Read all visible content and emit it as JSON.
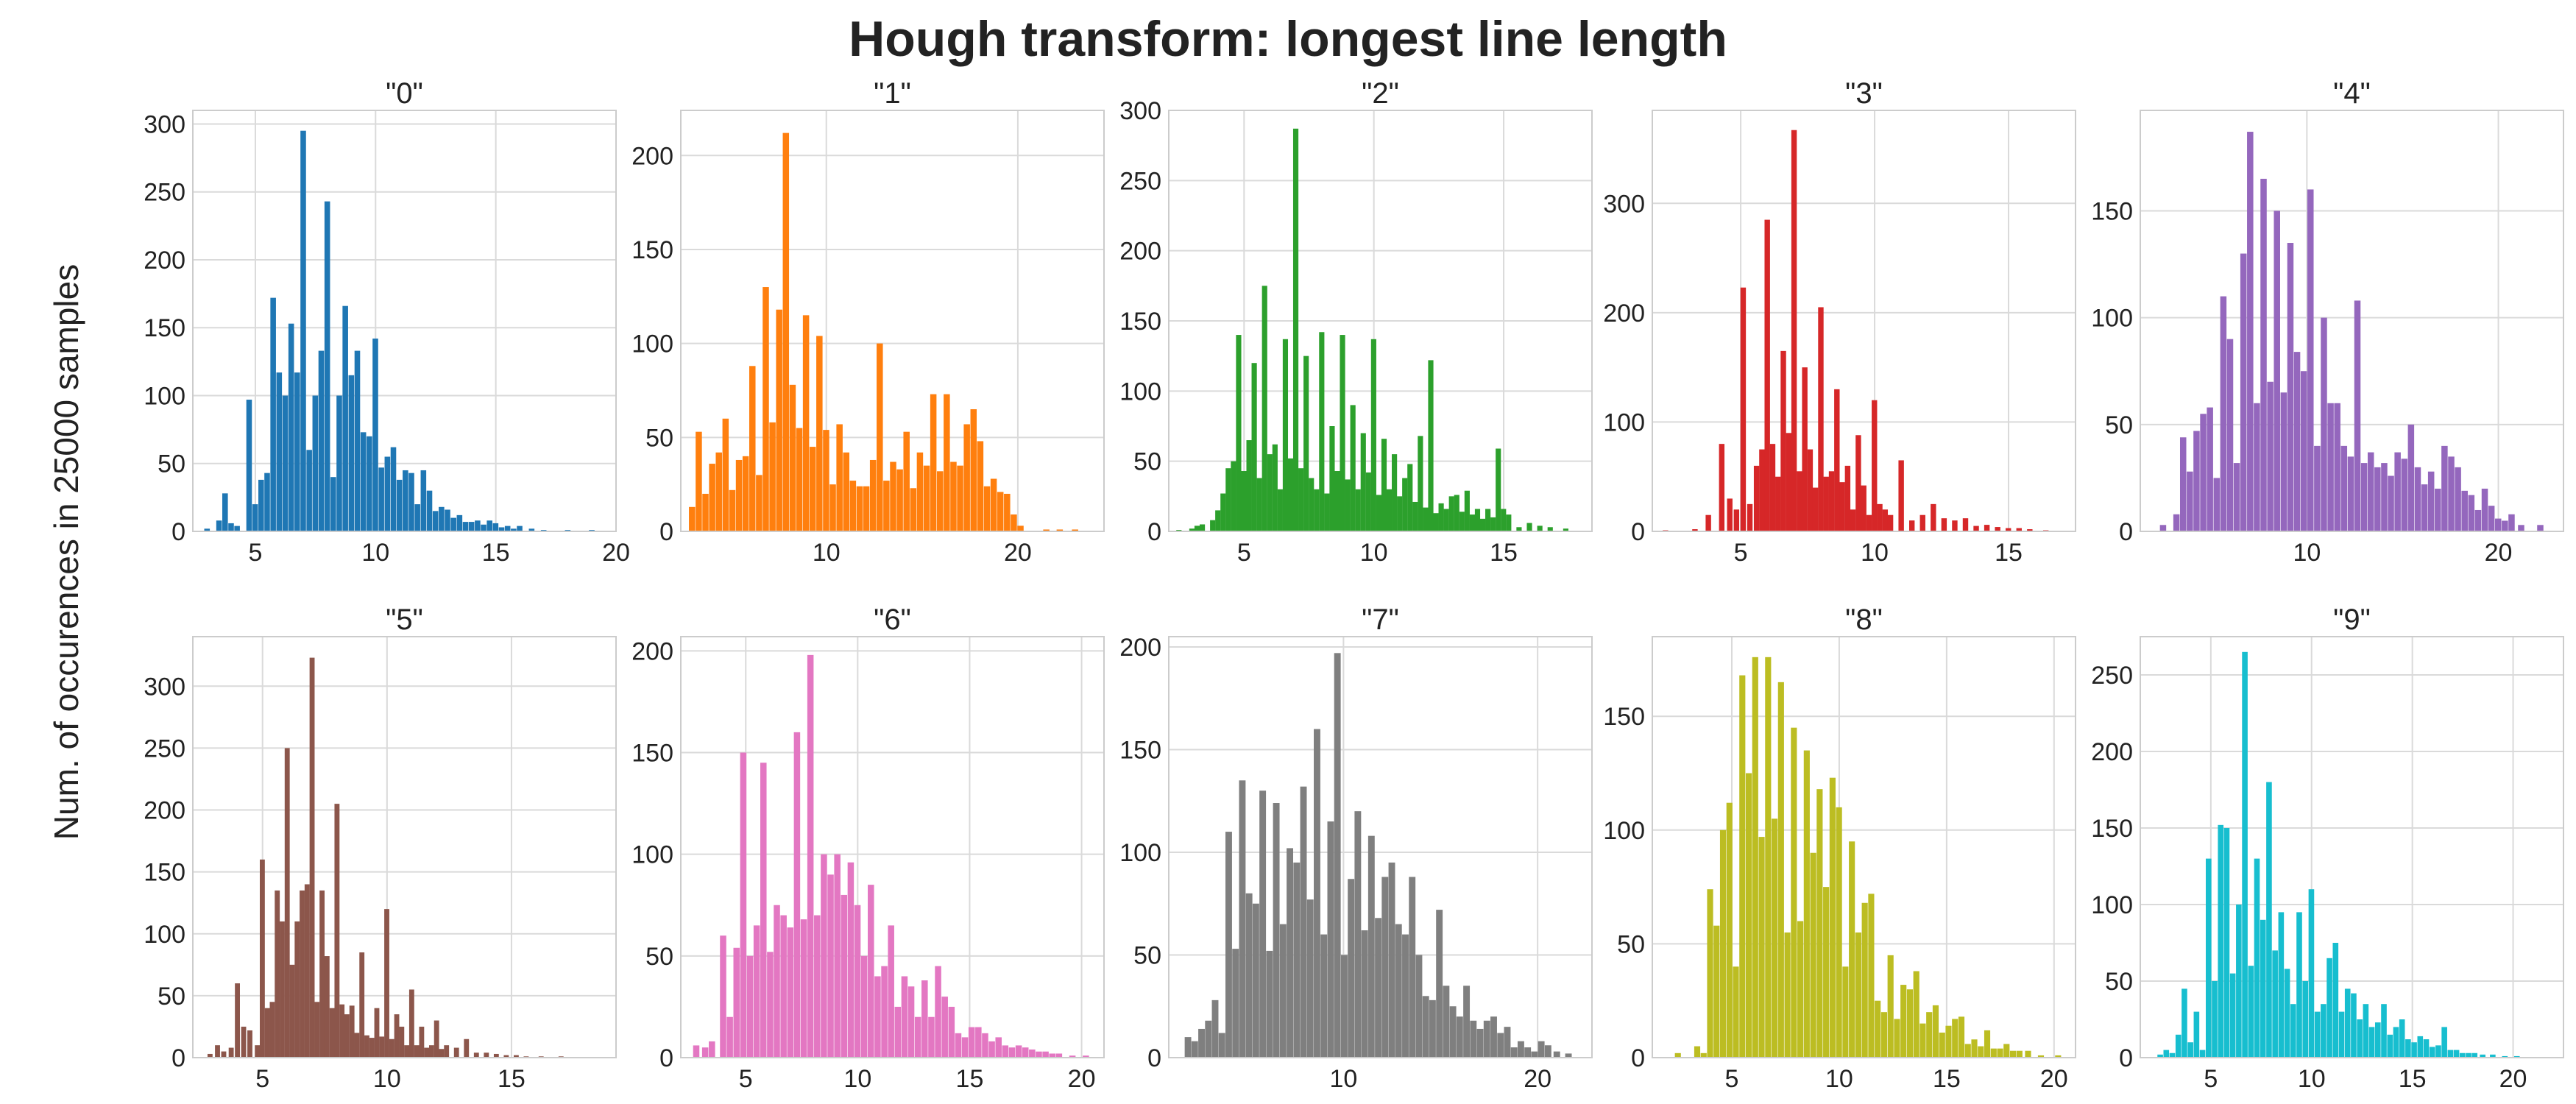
{
  "figure": {
    "title": "Hough transform: longest line length",
    "ylabel": "Num. of occurences in 25000 samples"
  },
  "chart_data": [
    {
      "type": "bar",
      "title": "\"0\"",
      "color": "#1f77b4",
      "xlim": [
        2.4,
        20
      ],
      "ylim": [
        0,
        310
      ],
      "xticks": [
        5,
        10,
        15,
        20
      ],
      "yticks": [
        0,
        50,
        100,
        150,
        200,
        250,
        300
      ],
      "grid": true,
      "bin_width": 0.25,
      "x": [
        3.0,
        3.5,
        3.75,
        4.0,
        4.25,
        4.75,
        5.0,
        5.25,
        5.5,
        5.75,
        6.0,
        6.25,
        6.5,
        6.75,
        7.0,
        7.25,
        7.5,
        7.75,
        8.0,
        8.25,
        8.5,
        8.75,
        9.0,
        9.25,
        9.5,
        9.75,
        10.0,
        10.25,
        10.5,
        10.75,
        11.0,
        11.25,
        11.5,
        11.75,
        12.0,
        12.25,
        12.5,
        12.75,
        13.0,
        13.25,
        13.5,
        13.75,
        14.0,
        14.25,
        14.5,
        14.75,
        15.0,
        15.25,
        15.5,
        15.75,
        16.0,
        16.5,
        17.0,
        18.0,
        19.0
      ],
      "values": [
        2,
        8,
        28,
        6,
        4,
        97,
        20,
        38,
        43,
        172,
        117,
        100,
        153,
        117,
        295,
        60,
        100,
        133,
        243,
        40,
        100,
        166,
        115,
        133,
        73,
        70,
        142,
        47,
        55,
        62,
        38,
        45,
        43,
        20,
        45,
        30,
        15,
        18,
        16,
        10,
        12,
        7,
        7,
        8,
        5,
        8,
        6,
        3,
        4,
        2,
        4,
        2,
        1,
        1,
        1
      ]
    },
    {
      "type": "bar",
      "title": "\"1\"",
      "color": "#ff7f0e",
      "xlim": [
        2.4,
        24.5
      ],
      "ylim": [
        0,
        224
      ],
      "xticks": [
        10,
        20
      ],
      "yticks": [
        0,
        50,
        100,
        150,
        200
      ],
      "grid": true,
      "bin_width": 0.35,
      "x": [
        3.0,
        3.35,
        3.7,
        4.05,
        4.4,
        4.75,
        5.1,
        5.45,
        5.8,
        6.15,
        6.5,
        6.85,
        7.2,
        7.55,
        7.9,
        8.25,
        8.6,
        8.95,
        9.3,
        9.65,
        10.0,
        10.35,
        10.7,
        11.05,
        11.4,
        11.75,
        12.1,
        12.45,
        12.8,
        13.15,
        13.5,
        13.85,
        14.2,
        14.55,
        14.9,
        15.25,
        15.6,
        15.95,
        16.3,
        16.65,
        17.0,
        17.35,
        17.7,
        18.05,
        18.4,
        18.75,
        19.1,
        19.45,
        19.8,
        20.15,
        21.5,
        22.2,
        23.0
      ],
      "values": [
        13,
        53,
        20,
        36,
        42,
        60,
        22,
        38,
        40,
        88,
        30,
        130,
        58,
        118,
        212,
        78,
        55,
        115,
        45,
        104,
        54,
        25,
        57,
        42,
        27,
        24,
        24,
        38,
        100,
        27,
        37,
        33,
        53,
        23,
        42,
        35,
        73,
        32,
        73,
        37,
        35,
        57,
        65,
        48,
        24,
        28,
        21,
        20,
        9,
        3,
        1,
        1,
        1
      ]
    },
    {
      "type": "bar",
      "title": "\"2\"",
      "color": "#2ca02c",
      "xlim": [
        2.1,
        18.4
      ],
      "ylim": [
        0,
        300
      ],
      "xticks": [
        5,
        10,
        15
      ],
      "yticks": [
        0,
        50,
        100,
        150,
        200,
        250,
        300
      ],
      "grid": true,
      "bin_width": 0.22,
      "x": [
        2.5,
        3.0,
        3.2,
        3.4,
        3.8,
        4.0,
        4.2,
        4.4,
        4.6,
        4.8,
        5.0,
        5.2,
        5.4,
        5.6,
        5.8,
        6.0,
        6.2,
        6.4,
        6.6,
        6.8,
        7.0,
        7.2,
        7.4,
        7.6,
        7.8,
        8.0,
        8.2,
        8.4,
        8.6,
        8.8,
        9.0,
        9.2,
        9.4,
        9.6,
        9.8,
        10.0,
        10.2,
        10.4,
        10.6,
        10.8,
        11.0,
        11.2,
        11.4,
        11.6,
        11.8,
        12.0,
        12.2,
        12.4,
        12.6,
        12.8,
        13.0,
        13.2,
        13.4,
        13.6,
        13.8,
        14.0,
        14.2,
        14.4,
        14.6,
        14.8,
        15.0,
        15.2,
        15.6,
        16.0,
        16.4,
        16.8,
        17.4
      ],
      "values": [
        1,
        2,
        4,
        5,
        8,
        15,
        27,
        45,
        50,
        140,
        43,
        65,
        120,
        38,
        175,
        55,
        62,
        30,
        137,
        52,
        287,
        45,
        125,
        38,
        30,
        142,
        27,
        75,
        43,
        140,
        37,
        90,
        30,
        70,
        42,
        137,
        26,
        66,
        30,
        55,
        25,
        38,
        48,
        21,
        68,
        17,
        122,
        13,
        20,
        16,
        25,
        26,
        14,
        29,
        12,
        16,
        9,
        16,
        10,
        59,
        16,
        12,
        3,
        6,
        4,
        3,
        2
      ]
    },
    {
      "type": "bar",
      "title": "\"3\"",
      "color": "#d62728",
      "xlim": [
        1.7,
        17.5
      ],
      "ylim": [
        0,
        385
      ],
      "xticks": [
        5,
        10,
        15
      ],
      "yticks": [
        0,
        100,
        200,
        300
      ],
      "grid": true,
      "bin_width": 0.22,
      "x": [
        2.2,
        3.3,
        3.8,
        4.3,
        4.6,
        4.85,
        5.1,
        5.35,
        5.6,
        5.8,
        6.0,
        6.2,
        6.4,
        6.6,
        6.8,
        7.0,
        7.2,
        7.4,
        7.6,
        7.8,
        8.0,
        8.2,
        8.4,
        8.6,
        8.8,
        9.0,
        9.2,
        9.4,
        9.6,
        9.8,
        10.0,
        10.2,
        10.4,
        10.6,
        11.0,
        11.4,
        11.8,
        12.2,
        12.6,
        13.0,
        13.4,
        13.8,
        14.2,
        14.6,
        15.0,
        15.4,
        15.8,
        16.4
      ],
      "values": [
        1,
        2,
        15,
        80,
        30,
        20,
        223,
        25,
        60,
        75,
        285,
        80,
        50,
        165,
        90,
        367,
        55,
        150,
        75,
        40,
        205,
        50,
        55,
        130,
        45,
        60,
        20,
        88,
        42,
        15,
        120,
        25,
        20,
        15,
        65,
        10,
        15,
        25,
        12,
        10,
        12,
        5,
        6,
        4,
        3,
        3,
        2,
        1
      ]
    },
    {
      "type": "bar",
      "title": "\"4\"",
      "color": "#9467bd",
      "xlim": [
        1.3,
        23.4
      ],
      "ylim": [
        0,
        197
      ],
      "xticks": [
        10,
        20
      ],
      "yticks": [
        0,
        50,
        100,
        150
      ],
      "grid": true,
      "bin_width": 0.35,
      "x": [
        2.5,
        3.2,
        3.55,
        3.9,
        4.25,
        4.6,
        4.95,
        5.3,
        5.65,
        6.0,
        6.35,
        6.7,
        7.05,
        7.4,
        7.75,
        8.1,
        8.45,
        8.8,
        9.15,
        9.5,
        9.85,
        10.2,
        10.55,
        10.9,
        11.25,
        11.6,
        11.95,
        12.3,
        12.65,
        13.0,
        13.35,
        13.7,
        14.05,
        14.4,
        14.75,
        15.1,
        15.45,
        15.8,
        16.15,
        16.5,
        16.85,
        17.2,
        17.55,
        17.9,
        18.25,
        18.6,
        18.95,
        19.3,
        19.65,
        20.0,
        20.35,
        20.7,
        21.2,
        22.2
      ],
      "values": [
        3,
        8,
        44,
        28,
        47,
        55,
        58,
        25,
        110,
        90,
        32,
        130,
        187,
        60,
        165,
        70,
        150,
        65,
        135,
        84,
        75,
        160,
        40,
        100,
        60,
        60,
        40,
        35,
        108,
        32,
        37,
        30,
        32,
        26,
        37,
        34,
        50,
        30,
        22,
        28,
        20,
        40,
        35,
        30,
        19,
        17,
        10,
        20,
        12,
        6,
        5,
        8,
        3,
        3
      ]
    },
    {
      "type": "bar",
      "title": "\"5\"",
      "color": "#8c564b",
      "xlim": [
        2.2,
        19.2
      ],
      "ylim": [
        0,
        340
      ],
      "xticks": [
        5,
        10,
        15
      ],
      "yticks": [
        0,
        50,
        100,
        150,
        200,
        250,
        300
      ],
      "grid": true,
      "bin_width": 0.22,
      "x": [
        2.9,
        3.2,
        3.45,
        3.75,
        4.0,
        4.25,
        4.5,
        4.8,
        5.0,
        5.2,
        5.4,
        5.6,
        5.8,
        6.0,
        6.2,
        6.4,
        6.6,
        6.8,
        7.0,
        7.2,
        7.4,
        7.6,
        7.8,
        8.0,
        8.2,
        8.4,
        8.6,
        8.8,
        9.0,
        9.2,
        9.4,
        9.6,
        9.8,
        10.0,
        10.2,
        10.4,
        10.6,
        10.8,
        11.0,
        11.2,
        11.4,
        11.6,
        11.8,
        12.0,
        12.2,
        12.4,
        12.8,
        13.2,
        13.6,
        14.0,
        14.4,
        14.8,
        15.2,
        15.6,
        16.2,
        17.0
      ],
      "values": [
        3,
        10,
        5,
        8,
        60,
        25,
        22,
        10,
        160,
        40,
        45,
        135,
        110,
        250,
        75,
        110,
        135,
        140,
        323,
        45,
        135,
        82,
        40,
        205,
        43,
        35,
        42,
        20,
        85,
        18,
        16,
        40,
        17,
        120,
        15,
        35,
        25,
        10,
        55,
        10,
        25,
        8,
        10,
        30,
        7,
        10,
        8,
        15,
        4,
        4,
        3,
        2,
        2,
        1,
        1,
        1
      ]
    },
    {
      "type": "bar",
      "title": "\"6\"",
      "color": "#e377c2",
      "xlim": [
        2.1,
        21.0
      ],
      "ylim": [
        0,
        207
      ],
      "xticks": [
        5,
        10,
        15,
        20
      ],
      "yticks": [
        0,
        50,
        100,
        150,
        200
      ],
      "grid": true,
      "bin_width": 0.3,
      "x": [
        2.8,
        3.2,
        3.5,
        4.0,
        4.3,
        4.6,
        4.9,
        5.2,
        5.5,
        5.8,
        6.1,
        6.4,
        6.7,
        7.0,
        7.3,
        7.6,
        7.9,
        8.2,
        8.5,
        8.8,
        9.1,
        9.4,
        9.7,
        10.0,
        10.3,
        10.6,
        10.9,
        11.2,
        11.5,
        11.8,
        12.1,
        12.4,
        12.7,
        13.0,
        13.3,
        13.6,
        13.9,
        14.2,
        14.5,
        14.8,
        15.1,
        15.4,
        15.7,
        16.0,
        16.3,
        16.6,
        16.9,
        17.2,
        17.5,
        17.8,
        18.1,
        18.4,
        18.7,
        19.0,
        19.6,
        20.2
      ],
      "values": [
        6,
        5,
        8,
        60,
        20,
        54,
        150,
        50,
        65,
        145,
        52,
        75,
        70,
        64,
        160,
        68,
        198,
        70,
        100,
        90,
        100,
        80,
        96,
        75,
        50,
        85,
        40,
        45,
        65,
        25,
        40,
        35,
        20,
        38,
        20,
        45,
        30,
        25,
        12,
        10,
        15,
        15,
        12,
        8,
        10,
        6,
        5,
        6,
        5,
        4,
        3,
        3,
        2,
        2,
        1,
        1
      ]
    },
    {
      "type": "bar",
      "title": "\"7\"",
      "color": "#7f7f7f",
      "xlim": [
        1.0,
        22.8
      ],
      "ylim": [
        0,
        205
      ],
      "xticks": [
        10,
        20
      ],
      "yticks": [
        0,
        50,
        100,
        150,
        200
      ],
      "grid": true,
      "bin_width": 0.36,
      "x": [
        2.0,
        2.35,
        2.7,
        3.05,
        3.4,
        3.75,
        4.1,
        4.45,
        4.8,
        5.15,
        5.5,
        5.85,
        6.2,
        6.55,
        6.9,
        7.25,
        7.6,
        7.95,
        8.3,
        8.65,
        9.0,
        9.35,
        9.7,
        10.05,
        10.4,
        10.75,
        11.1,
        11.45,
        11.8,
        12.15,
        12.5,
        12.85,
        13.2,
        13.55,
        13.9,
        14.25,
        14.6,
        14.95,
        15.3,
        15.65,
        16.0,
        16.35,
        16.7,
        17.05,
        17.4,
        17.75,
        18.1,
        18.45,
        18.8,
        19.15,
        19.5,
        19.85,
        20.2,
        20.55,
        21.0,
        21.6
      ],
      "values": [
        10,
        8,
        14,
        18,
        28,
        12,
        110,
        53,
        135,
        80,
        75,
        130,
        52,
        124,
        65,
        102,
        95,
        132,
        77,
        160,
        60,
        115,
        197,
        50,
        87,
        120,
        62,
        108,
        68,
        88,
        95,
        65,
        60,
        88,
        50,
        30,
        28,
        72,
        35,
        25,
        20,
        35,
        18,
        14,
        18,
        20,
        12,
        15,
        5,
        8,
        5,
        3,
        8,
        6,
        3,
        2
      ]
    },
    {
      "type": "bar",
      "title": "\"8\"",
      "color": "#bcbd22",
      "xlim": [
        1.3,
        21.0
      ],
      "ylim": [
        0,
        185
      ],
      "xticks": [
        5,
        10,
        15,
        20
      ],
      "yticks": [
        0,
        50,
        100,
        150
      ],
      "grid": true,
      "bin_width": 0.3,
      "x": [
        2.5,
        3.4,
        3.7,
        4.0,
        4.3,
        4.6,
        4.9,
        5.2,
        5.5,
        5.8,
        6.1,
        6.4,
        6.7,
        7.0,
        7.3,
        7.6,
        7.9,
        8.2,
        8.5,
        8.8,
        9.1,
        9.4,
        9.7,
        10.0,
        10.3,
        10.6,
        10.9,
        11.2,
        11.5,
        11.8,
        12.1,
        12.4,
        12.7,
        13.0,
        13.3,
        13.6,
        13.9,
        14.2,
        14.5,
        14.8,
        15.1,
        15.4,
        15.7,
        16.0,
        16.3,
        16.6,
        16.9,
        17.2,
        17.5,
        17.8,
        18.1,
        18.4,
        18.8,
        19.4,
        20.2
      ],
      "values": [
        2,
        5,
        2,
        74,
        58,
        100,
        112,
        40,
        168,
        125,
        176,
        97,
        176,
        105,
        165,
        55,
        145,
        60,
        135,
        90,
        118,
        75,
        123,
        110,
        40,
        95,
        55,
        68,
        72,
        25,
        20,
        45,
        17,
        32,
        30,
        38,
        15,
        20,
        23,
        11,
        14,
        17,
        18,
        6,
        8,
        5,
        12,
        4,
        4,
        6,
        3,
        3,
        3,
        1,
        1
      ]
    },
    {
      "type": "bar",
      "title": "\"9\"",
      "color": "#17becf",
      "xlim": [
        1.5,
        22.5
      ],
      "ylim": [
        0,
        275
      ],
      "xticks": [
        5,
        10,
        15,
        20
      ],
      "yticks": [
        0,
        50,
        100,
        150,
        200,
        250
      ],
      "grid": true,
      "bin_width": 0.3,
      "x": [
        2.5,
        2.8,
        3.1,
        3.4,
        3.7,
        4.0,
        4.3,
        4.6,
        4.9,
        5.2,
        5.5,
        5.8,
        6.1,
        6.4,
        6.7,
        7.0,
        7.3,
        7.6,
        7.9,
        8.2,
        8.5,
        8.8,
        9.1,
        9.4,
        9.7,
        10.0,
        10.3,
        10.6,
        10.9,
        11.2,
        11.5,
        11.8,
        12.1,
        12.4,
        12.7,
        13.0,
        13.3,
        13.6,
        13.9,
        14.2,
        14.5,
        14.8,
        15.1,
        15.4,
        15.7,
        16.0,
        16.3,
        16.6,
        16.9,
        17.2,
        17.5,
        17.8,
        18.1,
        18.5,
        19.0,
        19.6,
        20.2
      ],
      "values": [
        2,
        5,
        3,
        15,
        45,
        10,
        30,
        5,
        130,
        50,
        152,
        150,
        55,
        100,
        265,
        60,
        130,
        90,
        180,
        70,
        95,
        58,
        35,
        95,
        50,
        110,
        30,
        35,
        65,
        75,
        30,
        45,
        42,
        25,
        35,
        20,
        23,
        35,
        15,
        20,
        25,
        12,
        10,
        14,
        12,
        7,
        8,
        20,
        5,
        5,
        3,
        3,
        3,
        2,
        2,
        1,
        1
      ]
    }
  ]
}
